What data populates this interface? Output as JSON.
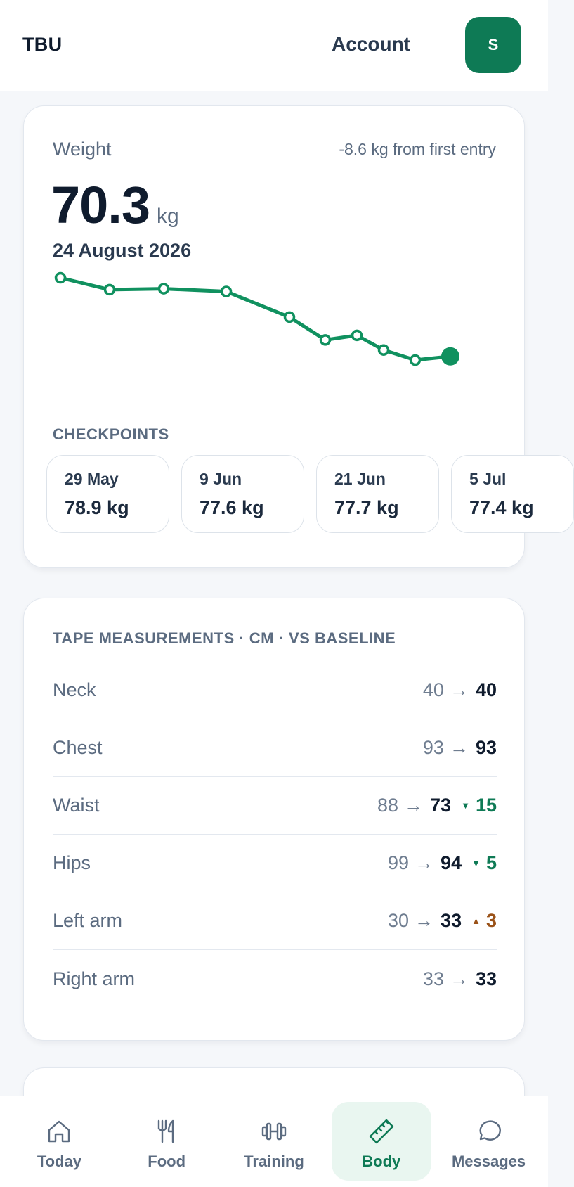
{
  "header": {
    "brand": "TBU",
    "account_label": "Account",
    "avatar_initial": "S"
  },
  "weight": {
    "label": "Weight",
    "delta_text": "-8.6 kg from first entry",
    "value": "70.3",
    "unit": "kg",
    "date": "24 August 2026",
    "checkpoints_label": "CHECKPOINTS",
    "checkpoints": [
      {
        "date": "29 May",
        "value": "78.9 kg"
      },
      {
        "date": "9 Jun",
        "value": "77.6 kg"
      },
      {
        "date": "21 Jun",
        "value": "77.7 kg"
      },
      {
        "date": "5 Jul",
        "value": "77.4 kg"
      }
    ]
  },
  "chart_data": {
    "type": "line",
    "series": [
      {
        "values": [
          78.9,
          77.6,
          77.7,
          77.4,
          74.6,
          72.1,
          72.6,
          71.0,
          69.9,
          70.3
        ]
      }
    ],
    "last_point_highlighted": true,
    "grid": false,
    "color": "#10915f"
  },
  "tape": {
    "title": "TAPE MEASUREMENTS · CM · VS BASELINE",
    "arrow": "→",
    "rows": [
      {
        "name": "Neck",
        "baseline": "40",
        "current": "40",
        "delta": "",
        "direction": ""
      },
      {
        "name": "Chest",
        "baseline": "93",
        "current": "93",
        "delta": "",
        "direction": ""
      },
      {
        "name": "Waist",
        "baseline": "88",
        "current": "73",
        "delta": "15",
        "direction": "down"
      },
      {
        "name": "Hips",
        "baseline": "99",
        "current": "94",
        "delta": "5",
        "direction": "down"
      },
      {
        "name": "Left arm",
        "baseline": "30",
        "current": "33",
        "delta": "3",
        "direction": "up"
      },
      {
        "name": "Right arm",
        "baseline": "33",
        "current": "33",
        "delta": "",
        "direction": ""
      }
    ]
  },
  "nav": {
    "items": [
      {
        "label": "Today",
        "icon": "home-icon",
        "active": false
      },
      {
        "label": "Food",
        "icon": "utensils-icon",
        "active": false
      },
      {
        "label": "Training",
        "icon": "dumbbell-icon",
        "active": false
      },
      {
        "label": "Body",
        "icon": "ruler-icon",
        "active": true
      },
      {
        "label": "Messages",
        "icon": "message-icon",
        "active": false
      }
    ]
  },
  "colors": {
    "brand_green": "#0e7a55",
    "line_green": "#10915f",
    "increase_brown": "#9a5218",
    "active_nav_bg": "#e9f6f0"
  }
}
